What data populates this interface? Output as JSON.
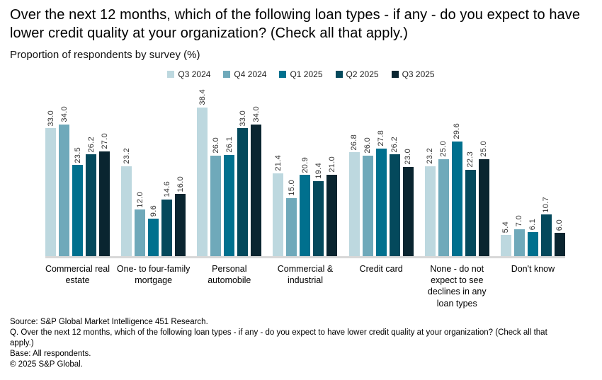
{
  "header": {
    "title": "Over the next 12 months, which of the following loan types - if any - do you expect to have lower credit quality at your organization? (Check all that apply.)",
    "subtitle": "Proportion of respondents by survey (%)"
  },
  "chart_data": {
    "type": "bar",
    "title": "Over the next 12 months, which of the following loan types - if any - do you expect to have lower credit quality at your organization? (Check all that apply.)",
    "ylabel": "Proportion of respondents by survey (%)",
    "categories": [
      "Commercial real estate",
      "One- to four-family mortgage",
      "Personal automobile",
      "Commercial & industrial",
      "Credit card",
      "None - do not expect to see declines in any loan types",
      "Don't know"
    ],
    "series": [
      {
        "name": "Q3 2024",
        "color": "#bdd8df",
        "values": [
          33.0,
          23.2,
          38.4,
          21.4,
          26.8,
          23.2,
          5.4
        ]
      },
      {
        "name": "Q4 2024",
        "color": "#6fa9ba",
        "values": [
          34.0,
          12.0,
          26.0,
          15.0,
          26.0,
          25.0,
          7.0
        ]
      },
      {
        "name": "Q1 2025",
        "color": "#00708e",
        "values": [
          23.5,
          9.6,
          26.1,
          20.9,
          27.8,
          29.6,
          6.1
        ]
      },
      {
        "name": "Q2 2025",
        "color": "#04495c",
        "values": [
          26.2,
          14.6,
          33.0,
          19.4,
          26.2,
          22.3,
          10.7
        ]
      },
      {
        "name": "Q3 2025",
        "color": "#0a2530",
        "values": [
          27.0,
          16.0,
          34.0,
          21.0,
          23.0,
          25.0,
          6.0
        ]
      }
    ],
    "ylim": [
      0,
      40
    ],
    "grid": false,
    "legend_position": "top",
    "value_labels": true,
    "value_label_rotation": 90
  },
  "footer": {
    "source": "Source: S&P Global Market Intelligence 451 Research.",
    "question": "Q. Over the next 12 months, which of the following loan types - if any - do you expect to have lower credit quality at your organization? (Check all that apply.)",
    "base": "Base: All respondents.",
    "copyright": "© 2025 S&P Global."
  }
}
